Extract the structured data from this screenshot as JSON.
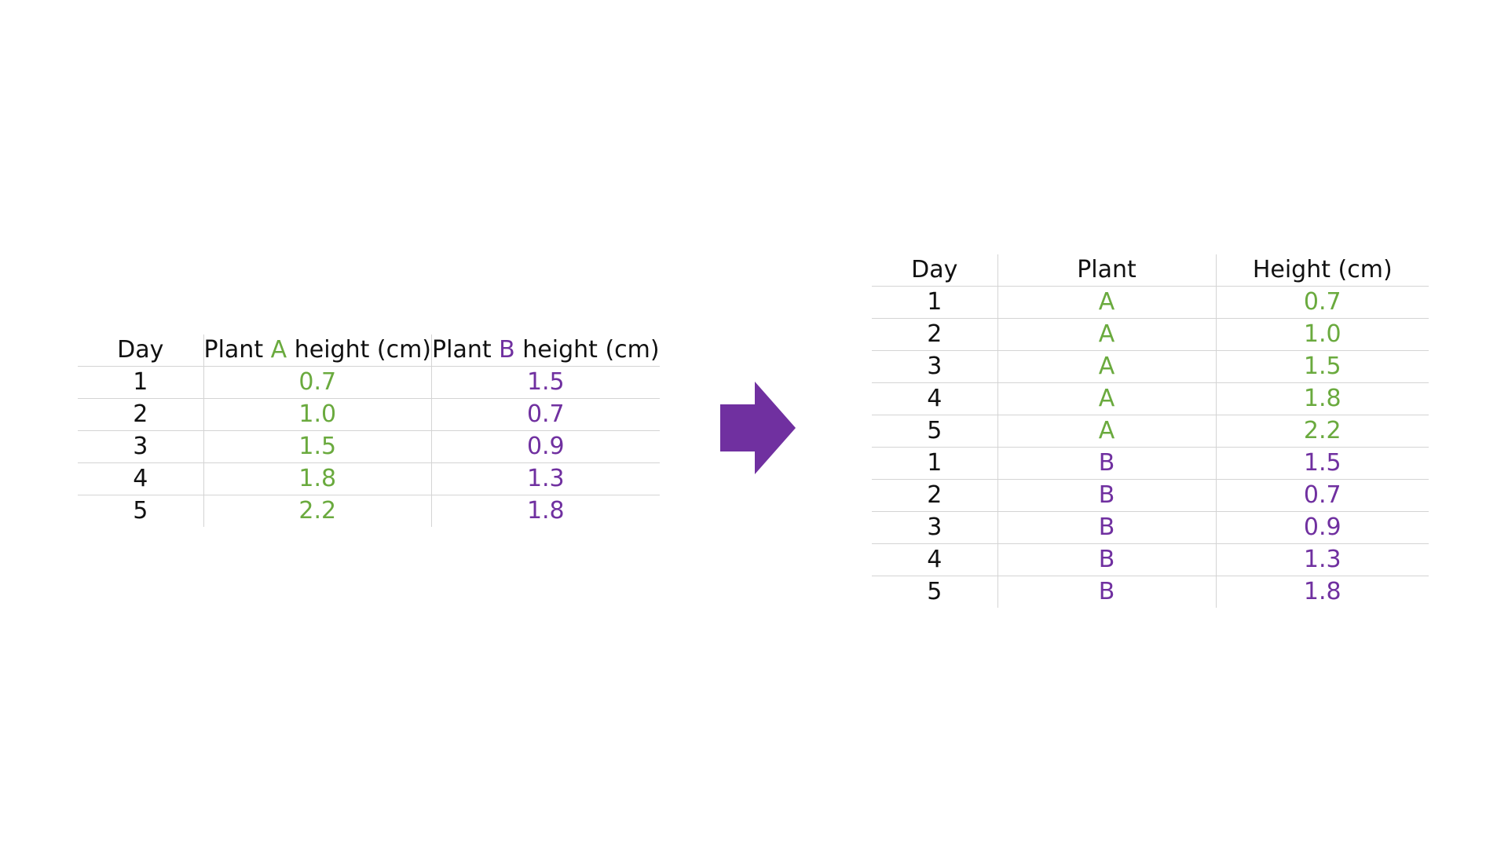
{
  "wide_table": {
    "headers": {
      "day": "Day",
      "plant_prefix": "Plant",
      "plant_a_letter": "A",
      "plant_b_letter": "B",
      "height_suffix": "height (cm)"
    },
    "rows": [
      {
        "day": "1",
        "a": "0.7",
        "b": "1.5"
      },
      {
        "day": "2",
        "a": "1.0",
        "b": "0.7"
      },
      {
        "day": "3",
        "a": "1.5",
        "b": "0.9"
      },
      {
        "day": "4",
        "a": "1.8",
        "b": "1.3"
      },
      {
        "day": "5",
        "a": "2.2",
        "b": "1.8"
      }
    ]
  },
  "long_table": {
    "headers": {
      "day": "Day",
      "plant": "Plant",
      "height": "Height (cm)"
    },
    "rows": [
      {
        "day": "1",
        "plant": "A",
        "height": "0.7"
      },
      {
        "day": "2",
        "plant": "A",
        "height": "1.0"
      },
      {
        "day": "3",
        "plant": "A",
        "height": "1.5"
      },
      {
        "day": "4",
        "plant": "A",
        "height": "1.8"
      },
      {
        "day": "5",
        "plant": "A",
        "height": "2.2"
      },
      {
        "day": "1",
        "plant": "B",
        "height": "1.5"
      },
      {
        "day": "2",
        "plant": "B",
        "height": "0.7"
      },
      {
        "day": "3",
        "plant": "B",
        "height": "0.9"
      },
      {
        "day": "4",
        "plant": "B",
        "height": "1.3"
      },
      {
        "day": "5",
        "plant": "B",
        "height": "1.8"
      }
    ]
  },
  "arrow_icon": "right-arrow-icon",
  "colors": {
    "plant_a": "#6aaa3e",
    "plant_b": "#7030a0",
    "arrow": "#7030a0",
    "text": "#111111",
    "grid": "#d4d4d4"
  }
}
